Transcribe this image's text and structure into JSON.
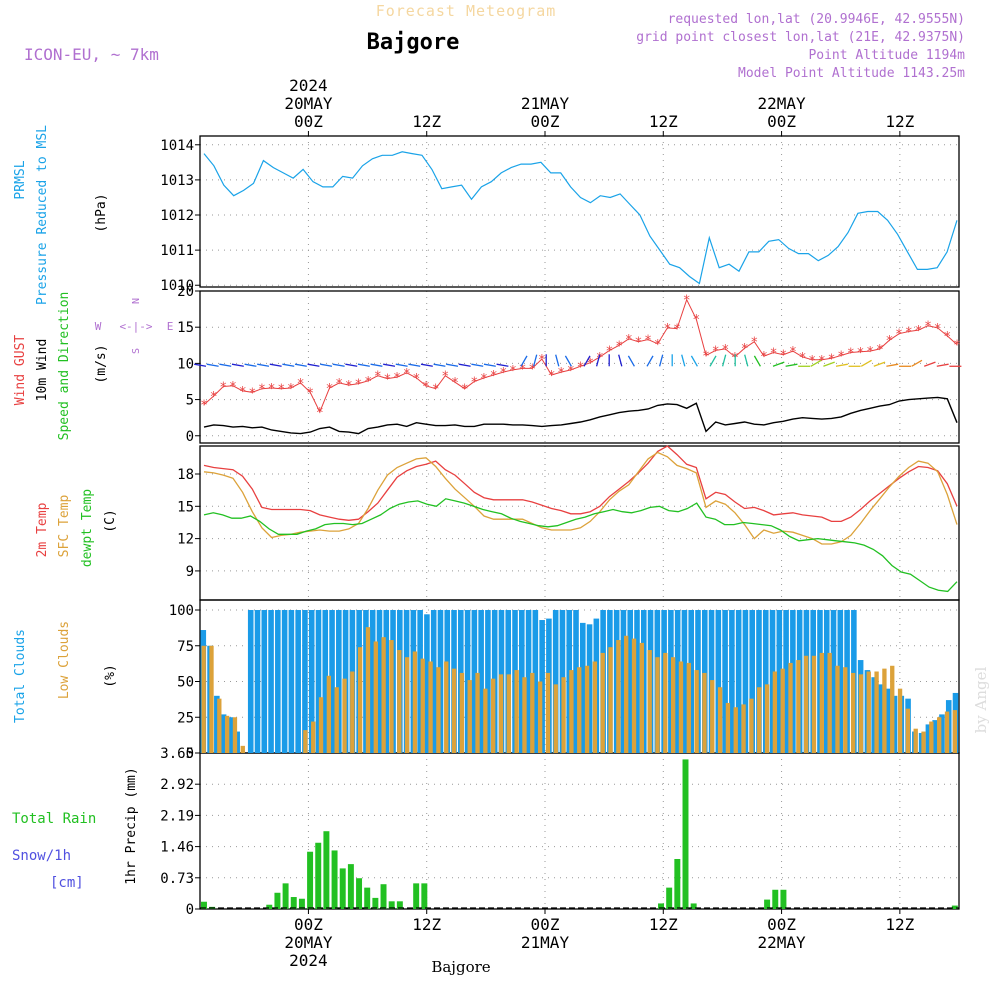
{
  "header": {
    "forecast_title": "Forecast Meteogram",
    "location": "Bajgore",
    "model": "ICON-EU, ~ 7km",
    "requested": "requested lon,lat (20.9946E, 42.9555N)",
    "grid_point": "grid point closest lon,lat (21E, 42.9375N)",
    "point_altitude": "Point Altitude 1194m",
    "model_altitude": "Model Point Altitude 1143.25m",
    "footer_location": "Bajgore",
    "watermark": "by Angel"
  },
  "time_axis": {
    "ticks": [
      {
        "h": 0,
        "label": "00Z"
      },
      {
        "h": 12,
        "label": "12Z"
      },
      {
        "h": 24,
        "label": "00Z"
      },
      {
        "h": 36,
        "label": "12Z"
      },
      {
        "h": 48,
        "label": "00Z"
      },
      {
        "h": 60,
        "label": "12Z"
      }
    ],
    "dates": [
      {
        "h": 0,
        "date": "20MAY",
        "year": "2024"
      },
      {
        "h": 24,
        "date": "21MAY",
        "year": ""
      },
      {
        "h": 48,
        "date": "22MAY",
        "year": ""
      }
    ],
    "start_hour": -11,
    "end_hour": 66
  },
  "chart_data": [
    {
      "type": "line",
      "panel": "pressure",
      "ylabel": [
        "PRMSL",
        "Pressure Reduced to MSL",
        "(hPa)"
      ],
      "yticks": [
        1010,
        1011,
        1012,
        1013,
        1014
      ],
      "ylim": [
        1009.95,
        1014.25
      ],
      "color": "#1aa3e8",
      "values": [
        1013.75,
        1013.4,
        1012.85,
        1012.55,
        1012.7,
        1012.9,
        1013.55,
        1013.35,
        1013.2,
        1013.05,
        1013.3,
        1012.95,
        1012.8,
        1012.8,
        1013.1,
        1013.05,
        1013.4,
        1013.6,
        1013.7,
        1013.7,
        1013.8,
        1013.75,
        1013.7,
        1013.3,
        1012.75,
        1012.8,
        1012.85,
        1012.45,
        1012.8,
        1012.95,
        1013.2,
        1013.35,
        1013.45,
        1013.45,
        1013.5,
        1013.2,
        1013.2,
        1012.8,
        1012.5,
        1012.35,
        1012.55,
        1012.5,
        1012.6,
        1012.3,
        1012.0,
        1011.4,
        1011.0,
        1010.6,
        1010.5,
        1010.25,
        1010.05,
        1011.35,
        1010.5,
        1010.6,
        1010.4,
        1010.95,
        1010.95,
        1011.25,
        1011.3,
        1011.05,
        1010.9,
        1010.9,
        1010.7,
        1010.85,
        1011.1,
        1011.5,
        1012.05,
        1012.1,
        1012.1,
        1011.85,
        1011.45,
        1010.95,
        1010.45,
        1010.45,
        1010.5,
        1010.95,
        1011.85
      ]
    },
    {
      "type": "line",
      "panel": "wind",
      "ylabel": [
        "Wind GUST",
        "10m Wind",
        "Speed and Direction",
        "(m/s)"
      ],
      "yticks": [
        0,
        5,
        10,
        15,
        20
      ],
      "ylim": [
        -1,
        20
      ],
      "compass": [
        "N",
        "W",
        "<-|->",
        "E",
        "S"
      ],
      "series": [
        {
          "name": "Wind GUST",
          "color": "#e84040",
          "values": [
            4.3,
            5.5,
            6.8,
            6.9,
            6.2,
            6.0,
            6.5,
            6.6,
            6.5,
            6.6,
            7.3,
            6.0,
            3.3,
            6.6,
            7.3,
            7.0,
            7.2,
            7.6,
            8.3,
            7.9,
            8.1,
            8.7,
            8.0,
            6.9,
            6.5,
            8.3,
            7.4,
            6.5,
            7.5,
            8.0,
            8.4,
            8.8,
            9.1,
            9.3,
            9.3,
            10.6,
            8.4,
            8.8,
            9.1,
            9.6,
            10.1,
            10.9,
            11.8,
            12.5,
            13.4,
            13.0,
            13.3,
            12.7,
            14.9,
            14.8,
            18.8,
            16.1,
            11.1,
            11.8,
            12.0,
            10.9,
            12.1,
            13.0,
            11.0,
            11.5,
            11.2,
            11.7,
            10.9,
            10.5,
            10.5,
            10.7,
            11.1,
            11.5,
            11.6,
            11.7,
            12.0,
            13.2,
            14.1,
            14.4,
            14.6,
            15.2,
            14.9,
            13.8,
            12.6
          ]
        },
        {
          "name": "10m Wind",
          "color": "#000000",
          "values": [
            1.2,
            1.5,
            1.4,
            1.2,
            1.3,
            1.1,
            1.2,
            0.8,
            0.6,
            0.4,
            0.3,
            0.5,
            1.0,
            1.2,
            0.6,
            0.5,
            0.3,
            1.0,
            1.2,
            1.5,
            1.6,
            1.3,
            1.8,
            1.6,
            1.4,
            1.4,
            1.5,
            1.3,
            1.3,
            1.6,
            1.6,
            1.6,
            1.5,
            1.5,
            1.4,
            1.3,
            1.4,
            1.5,
            1.7,
            1.9,
            2.2,
            2.6,
            2.9,
            3.2,
            3.4,
            3.5,
            3.7,
            4.2,
            4.4,
            4.3,
            3.8,
            4.5,
            0.6,
            1.9,
            1.5,
            1.7,
            1.9,
            1.6,
            1.5,
            1.8,
            2.0,
            2.3,
            2.5,
            2.4,
            2.3,
            2.4,
            2.6,
            3.1,
            3.5,
            3.8,
            4.1,
            4.3,
            4.8,
            5.0,
            5.1,
            5.2,
            5.3,
            5.1,
            1.8
          ]
        }
      ]
    },
    {
      "type": "line",
      "panel": "temperature",
      "ylabel": [
        "2m Temp",
        "SFC Temp",
        "dewpt Temp",
        "(C)"
      ],
      "yticks": [
        9,
        12,
        15,
        18
      ],
      "ylim": [
        6.3,
        20.6
      ],
      "series": [
        {
          "name": "2m Temp",
          "color": "#e84040",
          "values": [
            18.8,
            18.6,
            18.5,
            18.4,
            17.8,
            16.6,
            14.9,
            14.7,
            14.7,
            14.7,
            14.7,
            14.6,
            14.2,
            14.0,
            13.8,
            13.7,
            13.8,
            14.5,
            15.3,
            16.5,
            17.7,
            18.3,
            18.7,
            18.9,
            19.2,
            18.4,
            17.9,
            17.1,
            16.3,
            15.8,
            15.6,
            15.6,
            15.6,
            15.6,
            15.4,
            15.1,
            14.8,
            14.6,
            14.3,
            14.3,
            14.5,
            15.0,
            15.9,
            16.6,
            17.3,
            18.1,
            19.0,
            20.1,
            20.6,
            19.8,
            18.9,
            18.6,
            15.7,
            16.3,
            16.1,
            15.4,
            14.8,
            14.9,
            14.6,
            14.2,
            14.3,
            14.4,
            14.2,
            14.1,
            14.0,
            13.6,
            13.6,
            14.0,
            14.7,
            15.5,
            16.2,
            16.9,
            17.6,
            18.2,
            18.7,
            18.6,
            18.3,
            17.1,
            15.0
          ]
        },
        {
          "name": "SFC Temp",
          "color": "#dca23a",
          "values": [
            18.2,
            18.1,
            17.9,
            17.6,
            16.3,
            14.5,
            13.0,
            12.1,
            12.3,
            12.4,
            12.6,
            12.7,
            12.8,
            12.7,
            12.7,
            12.9,
            13.4,
            14.8,
            16.5,
            17.9,
            18.6,
            19.0,
            19.4,
            19.5,
            18.7,
            17.6,
            16.6,
            15.8,
            15.0,
            14.1,
            13.8,
            13.8,
            13.8,
            13.8,
            13.4,
            13.0,
            12.8,
            12.8,
            12.8,
            13.0,
            13.6,
            14.5,
            15.6,
            16.4,
            17.0,
            18.2,
            19.4,
            20.0,
            19.6,
            18.8,
            18.5,
            18.1,
            14.9,
            15.5,
            15.2,
            14.4,
            13.3,
            12.0,
            12.8,
            12.5,
            12.7,
            12.6,
            12.3,
            12.0,
            11.5,
            11.5,
            11.7,
            12.3,
            13.4,
            14.6,
            15.7,
            16.8,
            17.8,
            18.6,
            19.2,
            19.0,
            18.2,
            16.1,
            13.3
          ]
        },
        {
          "name": "dewpt Temp",
          "color": "#22c022",
          "values": [
            14.2,
            14.4,
            14.2,
            13.9,
            13.9,
            14.1,
            13.6,
            12.9,
            12.4,
            12.4,
            12.4,
            12.7,
            12.9,
            13.3,
            13.4,
            13.4,
            13.3,
            13.4,
            13.8,
            14.2,
            14.8,
            15.2,
            15.4,
            15.5,
            15.2,
            15.0,
            15.7,
            15.5,
            15.3,
            15.0,
            14.7,
            14.5,
            14.3,
            13.9,
            13.6,
            13.4,
            13.2,
            13.1,
            13.2,
            13.5,
            13.8,
            14.0,
            14.3,
            14.5,
            14.7,
            14.5,
            14.4,
            14.6,
            14.9,
            15.0,
            14.6,
            14.5,
            14.8,
            15.3,
            14.0,
            13.8,
            13.3,
            13.3,
            13.5,
            13.4,
            13.3,
            13.2,
            12.8,
            12.2,
            11.8,
            11.9,
            12.0,
            11.9,
            11.8,
            11.7,
            11.6,
            11.4,
            11.0,
            10.4,
            9.5,
            8.9,
            8.7,
            8.1,
            7.5,
            7.2,
            7.1,
            8.0
          ]
        }
      ]
    },
    {
      "type": "bar",
      "panel": "clouds",
      "ylabel": [
        "Total Clouds",
        "Low Clouds",
        "(%)"
      ],
      "yticks": [
        0,
        25,
        50,
        75,
        100
      ],
      "ylim": [
        0,
        107
      ],
      "series": [
        {
          "name": "Total Clouds",
          "color": "#1a9be8",
          "values": [
            86,
            75,
            40,
            27,
            25,
            15,
            0,
            100,
            100,
            100,
            100,
            100,
            100,
            100,
            100,
            100,
            100,
            100,
            100,
            100,
            100,
            100,
            100,
            100,
            100,
            100,
            100,
            100,
            100,
            100,
            100,
            100,
            100,
            97,
            100,
            100,
            100,
            100,
            100,
            100,
            100,
            100,
            100,
            100,
            100,
            100,
            100,
            100,
            100,
            100,
            93,
            94,
            100,
            100,
            100,
            100,
            91,
            90,
            94,
            100,
            100,
            100,
            100,
            100,
            100,
            100,
            100,
            100,
            100,
            100,
            100,
            100,
            100,
            100,
            100,
            100,
            100,
            100,
            100,
            100,
            100,
            100,
            100,
            100,
            100,
            100,
            100,
            100,
            100,
            100,
            100,
            100,
            100,
            100,
            100,
            100,
            100,
            65,
            58,
            53,
            48,
            45,
            40,
            40,
            38,
            15,
            14,
            20,
            23,
            27,
            37,
            42
          ]
        },
        {
          "name": "Low Clouds",
          "color": "#dca23a",
          "values": [
            75,
            75,
            38,
            26,
            25,
            5,
            0,
            0,
            0,
            0,
            0,
            0,
            0,
            16,
            22,
            39,
            54,
            46,
            52,
            57,
            74,
            88,
            78,
            81,
            79,
            72,
            67,
            71,
            66,
            64,
            60,
            64,
            59,
            56,
            51,
            56,
            45,
            52,
            55,
            55,
            58,
            53,
            56,
            50,
            56,
            48,
            53,
            58,
            60,
            61,
            64,
            70,
            74,
            79,
            82,
            80,
            77,
            72,
            67,
            70,
            67,
            64,
            63,
            58,
            56,
            51,
            46,
            35,
            32,
            34,
            38,
            46,
            48,
            57,
            59,
            63,
            65,
            68,
            68,
            70,
            70,
            61,
            60,
            56,
            55,
            57,
            57,
            59,
            61,
            45,
            31,
            17,
            15,
            22,
            25,
            29,
            30
          ]
        }
      ]
    },
    {
      "type": "bar",
      "panel": "precip",
      "ylabel": [
        "Total Rain",
        "Snow/1h",
        "[cm]",
        "1hr Precip (mm)"
      ],
      "yticks": [
        0,
        0.73,
        1.46,
        2.19,
        2.92,
        3.65
      ],
      "ytick_labels": [
        "0",
        "0.73",
        "1.46",
        "2.19",
        "2.92",
        "3.65"
      ],
      "ylim": [
        0,
        3.65
      ],
      "color": "#22c022",
      "values": [
        0.17,
        0.05,
        0,
        0,
        0,
        0,
        0,
        0,
        0.1,
        0.38,
        0.6,
        0.28,
        0.24,
        1.34,
        1.55,
        1.82,
        1.37,
        0.95,
        1.05,
        0.72,
        0.5,
        0.26,
        0.58,
        0.18,
        0.18,
        0,
        0.6,
        0.6,
        0,
        0,
        0,
        0,
        0,
        0,
        0,
        0,
        0,
        0,
        0,
        0,
        0,
        0,
        0,
        0,
        0,
        0,
        0,
        0,
        0,
        0,
        0,
        0,
        0,
        0,
        0,
        0,
        0.13,
        0.5,
        1.17,
        3.5,
        0.13,
        0,
        0,
        0,
        0,
        0,
        0,
        0,
        0,
        0.22,
        0.45,
        0.45,
        0,
        0,
        0,
        0,
        0,
        0,
        0,
        0,
        0,
        0,
        0,
        0,
        0,
        0,
        0,
        0,
        0,
        0,
        0,
        0,
        0.08
      ]
    }
  ]
}
